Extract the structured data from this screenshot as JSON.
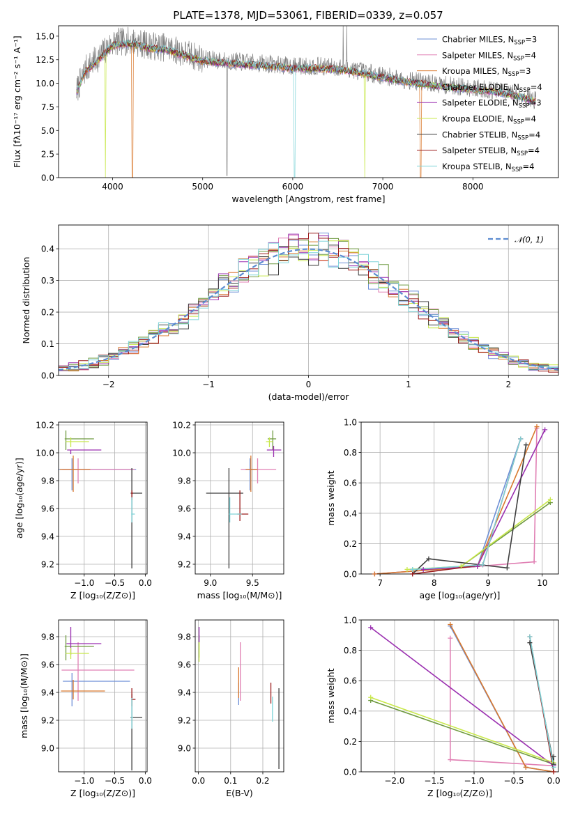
{
  "title": "PLATE=1378, MJD=53061, FIBERID=0339, z=0.057",
  "models": [
    {
      "name": "Chabrier MILES",
      "nssp": "3",
      "color": "#6d8fd6"
    },
    {
      "name": "Salpeter MILES",
      "nssp": "4",
      "color": "#e07fb3"
    },
    {
      "name": "Kroupa MILES",
      "nssp": "3",
      "color": "#d9792e"
    },
    {
      "name": "Chabrier ELODIE",
      "nssp": "4",
      "color": "#6f9a40"
    },
    {
      "name": "Salpeter ELODIE",
      "nssp": "3",
      "color": "#9a2fb0"
    },
    {
      "name": "Kroupa ELODIE",
      "nssp": "4",
      "color": "#c8e84a"
    },
    {
      "name": "Chabrier STELIB",
      "nssp": "4",
      "color": "#3d3d3d"
    },
    {
      "name": "Salpeter STELIB",
      "nssp": "4",
      "color": "#9b1c1c"
    },
    {
      "name": "Kroupa STELIB",
      "nssp": "4",
      "color": "#7fd4d8"
    }
  ],
  "nssp_prefix": "N",
  "nssp_sub": "SSP",
  "chart_data": [
    {
      "id": "spectrum",
      "type": "line",
      "xlabel": "wavelength [Angstrom, rest frame]",
      "ylabel": "Flux [fλ10⁻¹⁷ erg cm⁻² s⁻¹ A⁻¹]",
      "xlim": [
        3400,
        8950
      ],
      "ylim": [
        0,
        16.1
      ],
      "xticks": [
        4000,
        5000,
        6000,
        7000,
        8000
      ],
      "yticks": [
        0.0,
        2.5,
        5.0,
        7.5,
        10.0,
        12.5,
        15.0
      ],
      "legend": "top-right",
      "continuum": [
        [
          3600,
          9.2
        ],
        [
          3700,
          11.5
        ],
        [
          3850,
          12.8
        ],
        [
          4000,
          14.3
        ],
        [
          4200,
          14.5
        ],
        [
          4400,
          14.0
        ],
        [
          4600,
          13.8
        ],
        [
          4800,
          13.2
        ],
        [
          5000,
          12.6
        ],
        [
          5200,
          12.4
        ],
        [
          5500,
          12.2
        ],
        [
          5800,
          12.0
        ],
        [
          6000,
          11.8
        ],
        [
          6300,
          11.8
        ],
        [
          6600,
          11.6
        ],
        [
          6800,
          11.2
        ],
        [
          7000,
          10.8
        ],
        [
          7300,
          10.3
        ],
        [
          7600,
          9.9
        ],
        [
          7900,
          9.6
        ],
        [
          8200,
          9.3
        ],
        [
          8500,
          8.8
        ],
        [
          8700,
          8.2
        ]
      ],
      "data_noise": 2.2,
      "spikes_data": [
        [
          5270,
          0.2
        ],
        [
          6560,
          16.1
        ],
        [
          6600,
          16.1
        ]
      ],
      "model_dropouts": [
        {
          "x": 3920,
          "model": 5
        },
        {
          "x": 4220,
          "model": 2
        },
        {
          "x": 6020,
          "model": 8
        },
        {
          "x": 6800,
          "model": 5
        },
        {
          "x": 7420,
          "model": 2
        }
      ]
    },
    {
      "id": "residuals",
      "type": "histogram",
      "xlabel": "(data-model)/error",
      "ylabel": "Normed distribution",
      "xlim": [
        -2.5,
        2.5
      ],
      "ylim": [
        0,
        0.475
      ],
      "xticks": [
        -2,
        -1,
        0,
        1,
        2
      ],
      "yticks": [
        0.0,
        0.1,
        0.2,
        0.3,
        0.4
      ],
      "bin_width": 0.1,
      "reference_label": "𝒩(0, 1)",
      "reference_color": "#5b8bd0",
      "legend": "top-right"
    },
    {
      "id": "age-vs-Z",
      "type": "errorbar",
      "xlabel": "Z [log₁₀(Z/Z⊙)]",
      "ylabel": "age  [log₁₀(age/yr)]",
      "xlim": [
        -1.42,
        0.03
      ],
      "ylim": [
        9.13,
        10.22
      ],
      "xticks": [
        -1.0,
        -0.5,
        0.0
      ],
      "yticks": [
        9.2,
        9.4,
        9.6,
        9.8,
        10.0,
        10.2
      ],
      "points": [
        {
          "model": 0,
          "x": -1.2,
          "xerr": [
            0.22,
            1.05
          ],
          "y": 9.88,
          "yerr": [
            0.15,
            0.08
          ]
        },
        {
          "model": 1,
          "x": -1.1,
          "xerr": [
            0.26,
            0.93
          ],
          "y": 9.88,
          "yerr": [
            0.1,
            0.08
          ]
        },
        {
          "model": 2,
          "x": -1.18,
          "xerr": [
            0.22,
            0.28
          ],
          "y": 9.88,
          "yerr": [
            0.16,
            0.1
          ]
        },
        {
          "model": 3,
          "x": -1.3,
          "xerr": [
            0.02,
            0.46
          ],
          "y": 10.1,
          "yerr": [
            0.08,
            0.06
          ]
        },
        {
          "model": 4,
          "x": -1.22,
          "xerr": [
            0.06,
            0.5
          ],
          "y": 10.02,
          "yerr": [
            0.03,
            0.0
          ]
        },
        {
          "model": 5,
          "x": -1.22,
          "xerr": [
            0.08,
            0.3
          ],
          "y": 10.08,
          "yerr": [
            0.04,
            0.03
          ]
        },
        {
          "model": 6,
          "x": -0.22,
          "xerr": [
            0.02,
            0.17
          ],
          "y": 9.71,
          "yerr": [
            0.54,
            0.18
          ]
        },
        {
          "model": 7,
          "x": -0.22,
          "xerr": [
            0.01,
            0.02
          ],
          "y": 9.71,
          "yerr": [
            0.05,
            0.02
          ]
        },
        {
          "model": 8,
          "x": -0.22,
          "xerr": [
            0.01,
            0.05
          ],
          "y": 9.56,
          "yerr": [
            0.06,
            0.12
          ]
        }
      ]
    },
    {
      "id": "age-vs-mass",
      "type": "errorbar",
      "xlabel": "mass [log₁₀(M/M⊙)]",
      "ylabel": "",
      "xlim": [
        8.82,
        9.87
      ],
      "ylim": [
        9.13,
        10.22
      ],
      "xticks": [
        9.0,
        9.5
      ],
      "yticks": [
        9.2,
        9.4,
        9.6,
        9.8,
        10.0,
        10.2
      ],
      "points": [
        {
          "model": 0,
          "x": 9.47,
          "xerr": [
            0.06,
            0.08
          ],
          "y": 9.88,
          "yerr": [
            0.15,
            0.08
          ]
        },
        {
          "model": 1,
          "x": 9.56,
          "xerr": [
            0.2,
            0.22
          ],
          "y": 9.88,
          "yerr": [
            0.1,
            0.08
          ]
        },
        {
          "model": 2,
          "x": 9.48,
          "xerr": [
            0.06,
            0.08
          ],
          "y": 9.88,
          "yerr": [
            0.16,
            0.1
          ]
        },
        {
          "model": 3,
          "x": 9.74,
          "xerr": [
            0.06,
            0.04
          ],
          "y": 10.1,
          "yerr": [
            0.08,
            0.06
          ]
        },
        {
          "model": 4,
          "x": 9.75,
          "xerr": [
            0.08,
            0.09
          ],
          "y": 10.02,
          "yerr": [
            0.05,
            0.03
          ]
        },
        {
          "model": 5,
          "x": 9.7,
          "xerr": [
            0.04,
            0.04
          ],
          "y": 10.08,
          "yerr": [
            0.04,
            0.03
          ]
        },
        {
          "model": 6,
          "x": 9.22,
          "xerr": [
            0.27,
            0.17
          ],
          "y": 9.71,
          "yerr": [
            0.54,
            0.18
          ]
        },
        {
          "model": 7,
          "x": 9.35,
          "xerr": [
            0.03,
            0.1
          ],
          "y": 9.56,
          "yerr": [
            0.05,
            0.17
          ]
        },
        {
          "model": 8,
          "x": 9.23,
          "xerr": [
            0.01,
            0.14
          ],
          "y": 9.56,
          "yerr": [
            0.06,
            0.12
          ]
        }
      ]
    },
    {
      "id": "mass-weight-vs-age",
      "type": "line",
      "xlabel": "age  [log₁₀(age/yr)]",
      "ylabel": "mass weight",
      "xlim": [
        6.65,
        10.3
      ],
      "ylim": [
        0,
        1
      ],
      "xticks": [
        7,
        8,
        9,
        10
      ],
      "yticks": [
        0.0,
        0.2,
        0.4,
        0.6,
        0.8,
        1.0
      ],
      "series": [
        {
          "model": 0,
          "x": [
            6.9,
            8.8,
            9.6
          ],
          "y": [
            0.0,
            0.05,
            0.89
          ]
        },
        {
          "model": 1,
          "x": [
            6.9,
            8.8,
            9.85,
            9.9
          ],
          "y": [
            0.0,
            0.05,
            0.08,
            0.96
          ]
        },
        {
          "model": 2,
          "x": [
            6.9,
            8.8,
            9.9
          ],
          "y": [
            0.0,
            0.05,
            0.97
          ]
        },
        {
          "model": 3,
          "x": [
            7.6,
            8.5,
            10.15
          ],
          "y": [
            0.03,
            0.05,
            0.47
          ]
        },
        {
          "model": 4,
          "x": [
            7.8,
            8.8,
            10.05
          ],
          "y": [
            0.03,
            0.05,
            0.95
          ]
        },
        {
          "model": 5,
          "x": [
            7.5,
            8.5,
            10.15
          ],
          "y": [
            0.03,
            0.05,
            0.49
          ]
        },
        {
          "model": 6,
          "x": [
            7.6,
            7.9,
            9.35,
            9.7
          ],
          "y": [
            0.0,
            0.1,
            0.04,
            0.85
          ]
        },
        {
          "model": 7,
          "x": [
            7.6,
            8.9,
            9.6
          ],
          "y": [
            0.0,
            0.06,
            0.89
          ]
        },
        {
          "model": 8,
          "x": [
            7.6,
            8.9,
            9.6
          ],
          "y": [
            0.03,
            0.06,
            0.89
          ]
        }
      ]
    },
    {
      "id": "mass-vs-Z",
      "type": "errorbar",
      "xlabel": "Z [log₁₀(Z/Z⊙)]",
      "ylabel": "mass [log₁₀(M/M⊙)]",
      "xlim": [
        -1.42,
        0.03
      ],
      "ylim": [
        8.83,
        9.92
      ],
      "xticks": [
        -1.0,
        -0.5,
        0.0
      ],
      "yticks": [
        9.0,
        9.2,
        9.4,
        9.6,
        9.8
      ],
      "points": [
        {
          "model": 0,
          "x": -1.2,
          "xerr": [
            0.15,
            0.95
          ],
          "y": 9.48,
          "yerr": [
            0.18,
            0.06
          ]
        },
        {
          "model": 1,
          "x": -1.1,
          "xerr": [
            0.27,
            0.92
          ],
          "y": 9.56,
          "yerr": [
            0.22,
            0.2
          ]
        },
        {
          "model": 2,
          "x": -1.18,
          "xerr": [
            0.2,
            0.52
          ],
          "y": 9.41,
          "yerr": [
            0.06,
            0.08
          ]
        },
        {
          "model": 3,
          "x": -1.3,
          "xerr": [
            0.02,
            0.46
          ],
          "y": 9.73,
          "yerr": [
            0.1,
            0.08
          ]
        },
        {
          "model": 4,
          "x": -1.22,
          "xerr": [
            0.07,
            0.5
          ],
          "y": 9.75,
          "yerr": [
            0.08,
            0.12
          ]
        },
        {
          "model": 5,
          "x": -1.22,
          "xerr": [
            0.08,
            0.3
          ],
          "y": 9.68,
          "yerr": [
            0.04,
            0.04
          ]
        },
        {
          "model": 6,
          "x": -0.22,
          "xerr": [
            0.02,
            0.17
          ],
          "y": 9.22,
          "yerr": [
            0.38,
            0.17
          ]
        },
        {
          "model": 7,
          "x": -0.22,
          "xerr": [
            0.01,
            0.06
          ],
          "y": 9.35,
          "yerr": [
            0.05,
            0.08
          ]
        },
        {
          "model": 8,
          "x": -0.22,
          "xerr": [
            0.01,
            0.02
          ],
          "y": 9.22,
          "yerr": [
            0.08,
            0.14
          ]
        }
      ]
    },
    {
      "id": "mass-vs-EBV",
      "type": "errorbar",
      "xlabel": "E(B-V)",
      "ylabel": "",
      "xlim": [
        -0.01,
        0.265
      ],
      "ylim": [
        8.83,
        9.92
      ],
      "xticks": [
        0.0,
        0.1,
        0.2
      ],
      "yticks": [
        9.0,
        9.2,
        9.4,
        9.6,
        9.8
      ],
      "points": [
        {
          "model": 0,
          "x": 0.125,
          "y": 9.41,
          "yerr": [
            0.1,
            0.06
          ]
        },
        {
          "model": 1,
          "x": 0.13,
          "y": 9.56,
          "yerr": [
            0.22,
            0.2
          ]
        },
        {
          "model": 2,
          "x": 0.125,
          "y": 9.48,
          "yerr": [
            0.12,
            0.1
          ]
        },
        {
          "model": 3,
          "x": 0.002,
          "y": 9.75,
          "yerr": [
            0.1,
            0.06
          ]
        },
        {
          "model": 4,
          "x": 0.002,
          "y": 9.8,
          "yerr": [
            0.04,
            0.07
          ]
        },
        {
          "model": 5,
          "x": 0.002,
          "y": 9.7,
          "yerr": [
            0.08,
            0.06
          ]
        },
        {
          "model": 6,
          "x": 0.25,
          "y": 9.14,
          "yerr": [
            0.29,
            0.29
          ]
        },
        {
          "model": 7,
          "x": 0.225,
          "y": 9.4,
          "yerr": [
            0.08,
            0.07
          ]
        },
        {
          "model": 8,
          "x": 0.23,
          "y": 9.28,
          "yerr": [
            0.09,
            0.09
          ]
        }
      ]
    },
    {
      "id": "mass-weight-vs-Z",
      "type": "line",
      "xlabel": "Z [log₁₀(Z/Z⊙)]",
      "ylabel": "mass weight",
      "xlim": [
        -2.42,
        0.06
      ],
      "ylim": [
        0,
        1
      ],
      "xticks": [
        -2.0,
        -1.5,
        -1.0,
        -0.5,
        0.0
      ],
      "yticks": [
        0.0,
        0.2,
        0.4,
        0.6,
        0.8,
        1.0
      ],
      "series": [
        {
          "model": 0,
          "x": [
            -1.3,
            -0.35,
            0.0
          ],
          "y": [
            0.96,
            0.03,
            0.0
          ]
        },
        {
          "model": 1,
          "x": [
            -1.3,
            -1.3,
            0.0
          ],
          "y": [
            0.88,
            0.08,
            0.04
          ]
        },
        {
          "model": 2,
          "x": [
            -1.3,
            -0.35,
            0.0
          ],
          "y": [
            0.97,
            0.03,
            0.0
          ]
        },
        {
          "model": 3,
          "x": [
            -2.3,
            0.0
          ],
          "y": [
            0.47,
            0.05
          ]
        },
        {
          "model": 4,
          "x": [
            -2.3,
            0.0
          ],
          "y": [
            0.95,
            0.04
          ]
        },
        {
          "model": 5,
          "x": [
            -2.3,
            0.0
          ],
          "y": [
            0.49,
            0.06
          ]
        },
        {
          "model": 6,
          "x": [
            -0.3,
            0.0,
            0.0
          ],
          "y": [
            0.85,
            0.05,
            0.1
          ]
        },
        {
          "model": 7,
          "x": [
            -0.3,
            0.0
          ],
          "y": [
            0.89,
            0.0
          ]
        },
        {
          "model": 8,
          "x": [
            -0.3,
            0.0
          ],
          "y": [
            0.89,
            0.03
          ]
        }
      ]
    }
  ]
}
